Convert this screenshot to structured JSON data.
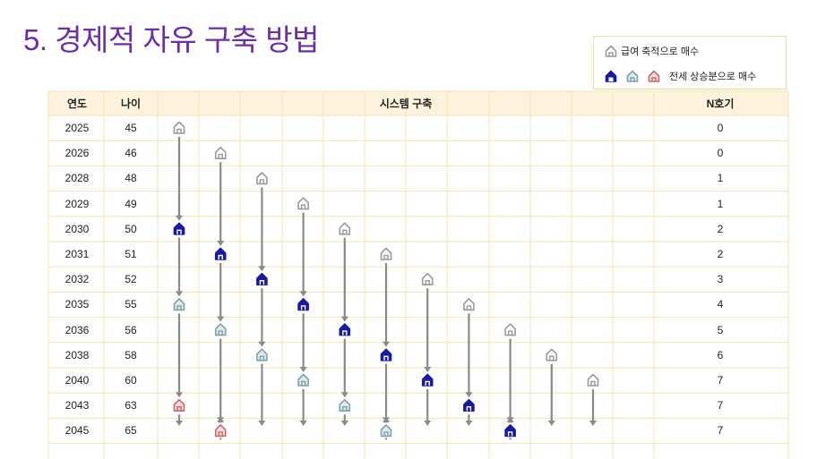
{
  "title": "5. 경제적 자유 구축 방법",
  "legend": {
    "item1": "급여 축적으로 매수",
    "item2": "전세 상승분으로 매수"
  },
  "headers": {
    "year": "연도",
    "age": "나이",
    "system": "시스템 구축",
    "count": "N호기"
  },
  "rows": [
    {
      "year": "2025",
      "age": "45",
      "count": "0"
    },
    {
      "year": "2026",
      "age": "46",
      "count": "0"
    },
    {
      "year": "2028",
      "age": "48",
      "count": "1"
    },
    {
      "year": "2029",
      "age": "49",
      "count": "1"
    },
    {
      "year": "2030",
      "age": "50",
      "count": "2"
    },
    {
      "year": "2031",
      "age": "51",
      "count": "2"
    },
    {
      "year": "2032",
      "age": "52",
      "count": "3"
    },
    {
      "year": "2035",
      "age": "55",
      "count": "4"
    },
    {
      "year": "2036",
      "age": "56",
      "count": "5"
    },
    {
      "year": "2038",
      "age": "58",
      "count": "6"
    },
    {
      "year": "2040",
      "age": "60",
      "count": "7"
    },
    {
      "year": "2043",
      "age": "63",
      "count": "7"
    },
    {
      "year": "2045",
      "age": "65",
      "count": "7"
    }
  ],
  "colors": {
    "title": "#6a2fa0",
    "header_bg": "#fdf3dd",
    "grid_line": "#f3e3b5",
    "arrow": "#8a8a8a",
    "house_salary": "#9a9a9a",
    "house_jeonse_blue": "#1a1a9c",
    "house_jeonse_teal": "#7fa3a8",
    "house_jeonse_red": "#c46a6a"
  },
  "houses": [
    {
      "col": 0,
      "row": 0,
      "type": "salary"
    },
    {
      "col": 0,
      "row": 4,
      "type": "blue"
    },
    {
      "col": 0,
      "row": 7,
      "type": "teal"
    },
    {
      "col": 0,
      "row": 11,
      "type": "red"
    },
    {
      "col": 1,
      "row": 1,
      "type": "salary"
    },
    {
      "col": 1,
      "row": 5,
      "type": "blue"
    },
    {
      "col": 1,
      "row": 8,
      "type": "teal"
    },
    {
      "col": 1,
      "row": 12,
      "type": "red"
    },
    {
      "col": 2,
      "row": 2,
      "type": "salary"
    },
    {
      "col": 2,
      "row": 6,
      "type": "blue"
    },
    {
      "col": 2,
      "row": 9,
      "type": "teal"
    },
    {
      "col": 3,
      "row": 3,
      "type": "salary"
    },
    {
      "col": 3,
      "row": 7,
      "type": "blue"
    },
    {
      "col": 3,
      "row": 10,
      "type": "teal"
    },
    {
      "col": 4,
      "row": 4,
      "type": "salary"
    },
    {
      "col": 4,
      "row": 8,
      "type": "blue"
    },
    {
      "col": 4,
      "row": 11,
      "type": "teal"
    },
    {
      "col": 5,
      "row": 5,
      "type": "salary"
    },
    {
      "col": 5,
      "row": 9,
      "type": "blue"
    },
    {
      "col": 5,
      "row": 12,
      "type": "teal"
    },
    {
      "col": 6,
      "row": 6,
      "type": "salary"
    },
    {
      "col": 6,
      "row": 10,
      "type": "blue"
    },
    {
      "col": 7,
      "row": 7,
      "type": "salary"
    },
    {
      "col": 7,
      "row": 11,
      "type": "blue"
    },
    {
      "col": 8,
      "row": 8,
      "type": "salary"
    },
    {
      "col": 8,
      "row": 12,
      "type": "blue"
    },
    {
      "col": 9,
      "row": 9,
      "type": "salary"
    },
    {
      "col": 10,
      "row": 10,
      "type": "salary"
    }
  ]
}
